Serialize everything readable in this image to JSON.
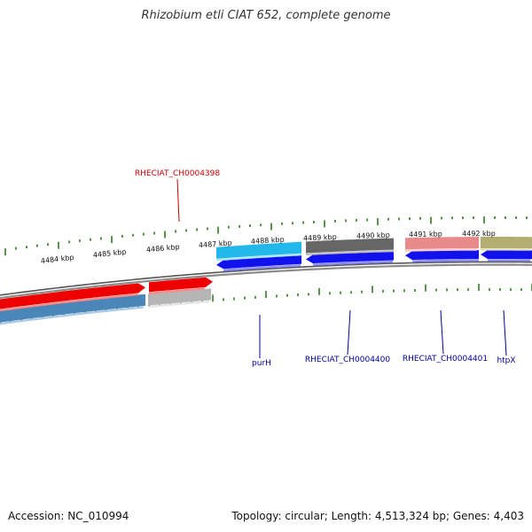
{
  "title": "Rhizobium etli CIAT 652, complete genome",
  "footer": {
    "accession": "Accession: NC_010994",
    "topology": "Topology: circular; Length: 4,513,324 bp; Genes: 4,403"
  },
  "colors": {
    "tick": "#2e7d1f",
    "backbone": "#8a8a8a",
    "label_top": "#cc0000",
    "label_bottom": "#000099"
  },
  "ruler": {
    "unit": "kbp",
    "labels": [
      "4484 kbp",
      "4485 kbp",
      "4486 kbp",
      "4487 kbp",
      "4488 kbp",
      "4489 kbp",
      "4490 kbp",
      "4491 kbp",
      "4492 kbp"
    ]
  },
  "features_top": [
    {
      "name": "",
      "color": "#4a86b8",
      "light": "#a8c8e6",
      "row": "outer"
    },
    {
      "name": "",
      "color": "#b5b5b5",
      "light": "#e4e4e4",
      "row": "outer"
    },
    {
      "name": "",
      "color": "#ee0000",
      "light": "#ff8888",
      "row": "inner"
    },
    {
      "name": "",
      "color": "#ee0000",
      "light": "#ff8888",
      "row": "inner"
    }
  ],
  "features_bottom": [
    {
      "color": "#1111ee",
      "light": "#8888ff",
      "row": "inner"
    },
    {
      "color": "#1111ee",
      "light": "#8888ff",
      "row": "inner"
    },
    {
      "color": "#1111ee",
      "light": "#8888ff",
      "row": "inner"
    },
    {
      "color": "#1111ee",
      "light": "#8888ff",
      "row": "inner"
    },
    {
      "color": "#22b8ea",
      "light": "#a6e6ff",
      "row": "outer"
    },
    {
      "color": "#666666",
      "light": "#bdbdbd",
      "row": "outer"
    },
    {
      "color": "#e88a8a",
      "light": "#f7c8c8",
      "row": "outer"
    },
    {
      "color": "#b4ad70",
      "light": "#e0dbb0",
      "row": "outer"
    }
  ],
  "labels_top": [
    {
      "text": "RHECIAT_CH0004398"
    }
  ],
  "labels_bottom": [
    {
      "text": "purH"
    },
    {
      "text": "RHECIAT_CH0004400"
    },
    {
      "text": "RHECIAT_CH0004401"
    },
    {
      "text": "htpX"
    }
  ]
}
